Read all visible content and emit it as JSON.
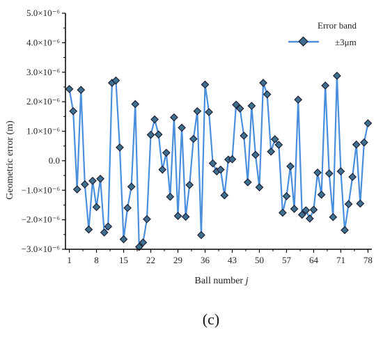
{
  "chart_data": {
    "type": "line",
    "xlabel": "Ball number ",
    "xlabel_italic": "j",
    "ylabel": "Geometric error (m)",
    "xlim": [
      0,
      79
    ],
    "ylim": [
      -3e-06,
      5e-06
    ],
    "x_ticks": [
      1,
      8,
      15,
      22,
      29,
      36,
      43,
      50,
      57,
      64,
      71,
      78
    ],
    "y_ticks": [
      {
        "value": -3e-06,
        "label": "−3.0×10⁻⁶"
      },
      {
        "value": -2e-06,
        "label": "−2.0×10⁻⁶"
      },
      {
        "value": -1e-06,
        "label": "−1.0×10⁻⁶"
      },
      {
        "value": 0.0,
        "label": "0.0"
      },
      {
        "value": 1e-06,
        "label": "1.0×10⁻⁶"
      },
      {
        "value": 2e-06,
        "label": "2.0×10⁻⁶"
      },
      {
        "value": 3e-06,
        "label": "3.0×10⁻⁶"
      },
      {
        "value": 4e-06,
        "label": "4.0×10⁻⁶"
      },
      {
        "value": 5e-06,
        "label": "5.0×10⁻⁶"
      }
    ],
    "legend": {
      "title": "Error band",
      "entry": "±3μm",
      "placement": "top-right"
    },
    "series": [
      {
        "name": "±3μm",
        "color": "#4a8fdd",
        "marker_fill": "#3e6f8f",
        "marker_stroke": "#1a1a2e",
        "x": [
          1,
          2,
          3,
          4,
          5,
          6,
          7,
          8,
          9,
          10,
          11,
          12,
          13,
          14,
          15,
          16,
          17,
          18,
          19,
          20,
          21,
          22,
          23,
          24,
          25,
          26,
          27,
          28,
          29,
          30,
          31,
          32,
          33,
          34,
          35,
          36,
          37,
          38,
          39,
          40,
          41,
          42,
          43,
          44,
          45,
          46,
          47,
          48,
          49,
          50,
          51,
          52,
          53,
          54,
          55,
          56,
          57,
          58,
          59,
          60,
          61,
          62,
          63,
          64,
          65,
          66,
          67,
          68,
          69,
          70,
          71,
          72,
          73,
          74,
          75,
          76,
          77,
          78
        ],
        "values": [
          2.43e-06,
          1.68e-06,
          -9.7e-07,
          2.4e-06,
          -8e-07,
          -2.33e-06,
          -6.8e-07,
          -1.57e-06,
          -6.1e-07,
          -2.43e-06,
          -2.23e-06,
          2.64e-06,
          2.72e-06,
          4.5e-07,
          -2.66e-06,
          -1.6e-06,
          -8.8e-07,
          1.92e-06,
          -2.92e-06,
          -2.77e-06,
          -1.98e-06,
          8.8e-07,
          1.4e-06,
          8.9e-07,
          -3e-07,
          2.7e-07,
          -1.22e-06,
          1.47e-06,
          -1.87e-06,
          1.12e-06,
          -1.9e-06,
          -8.2e-07,
          7.4e-07,
          1.68e-06,
          -2.52e-06,
          2.58e-06,
          1.65e-06,
          -9e-08,
          -3.6e-07,
          -3e-07,
          -1.17e-06,
          4e-08,
          5e-08,
          1.9e-06,
          1.77e-06,
          8.5e-07,
          -7.3e-07,
          1.86e-06,
          2e-07,
          -9e-07,
          2.64e-06,
          2.25e-06,
          3.1e-07,
          7.3e-07,
          5.4e-07,
          -1.76e-06,
          -1.2e-06,
          -1.9e-07,
          -1.63e-06,
          2.07e-06,
          -1.83e-06,
          -1.68e-06,
          -1.96e-06,
          -1.66e-06,
          -4e-07,
          -1.15e-06,
          2.55e-06,
          -4.3e-07,
          -1.91e-06,
          2.88e-06,
          -3.6e-07,
          -2.35e-06,
          -1.47e-06,
          -5.5e-07,
          5.5e-07,
          -1.45e-06,
          6.2e-07,
          1.27e-06
        ]
      }
    ]
  },
  "caption": {
    "text": "(c)"
  }
}
